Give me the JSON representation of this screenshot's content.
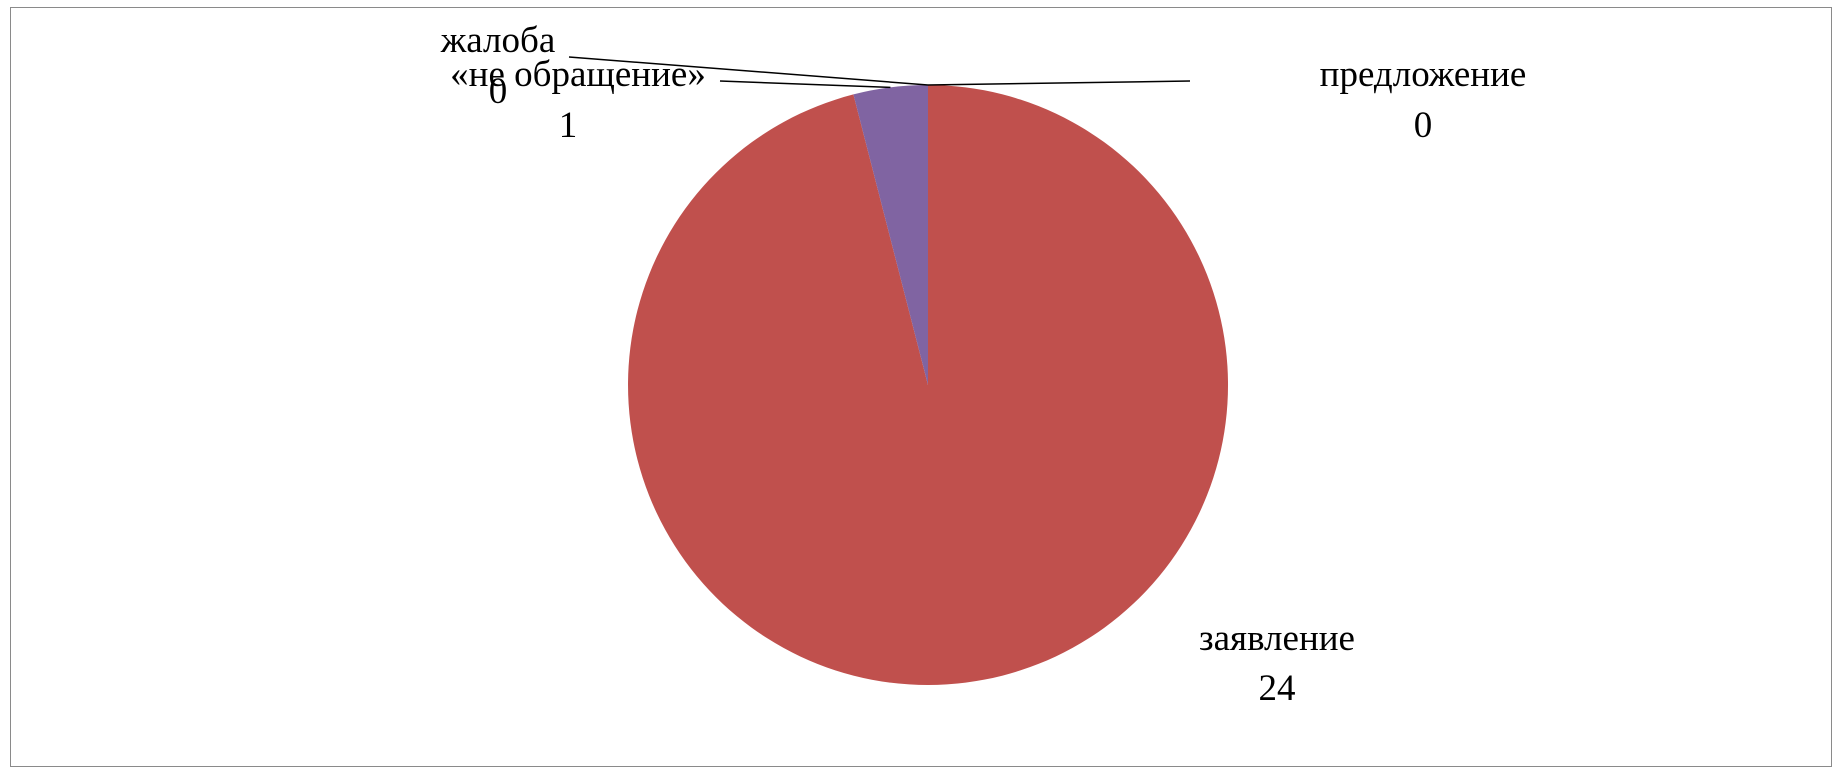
{
  "chart_data": {
    "type": "pie",
    "title": "",
    "slices": [
      {
        "name": "предложение",
        "label": "предложение",
        "value": 0,
        "value_label": "0",
        "color": "#4F81BD"
      },
      {
        "name": "заявление",
        "label": "заявление",
        "value": 24,
        "value_label": "24",
        "color": "#C0504D"
      },
      {
        "name": "«не обращение»",
        "label": "«не обращение»",
        "value": 1,
        "value_label": "1",
        "color": "#8064A2"
      },
      {
        "name": "жалоба",
        "label": "жалоба",
        "value": 0,
        "value_label": "0",
        "color": "#9BBB59"
      }
    ],
    "legend": "none",
    "start_angle": "12 o'clock",
    "direction": "clockwise"
  }
}
